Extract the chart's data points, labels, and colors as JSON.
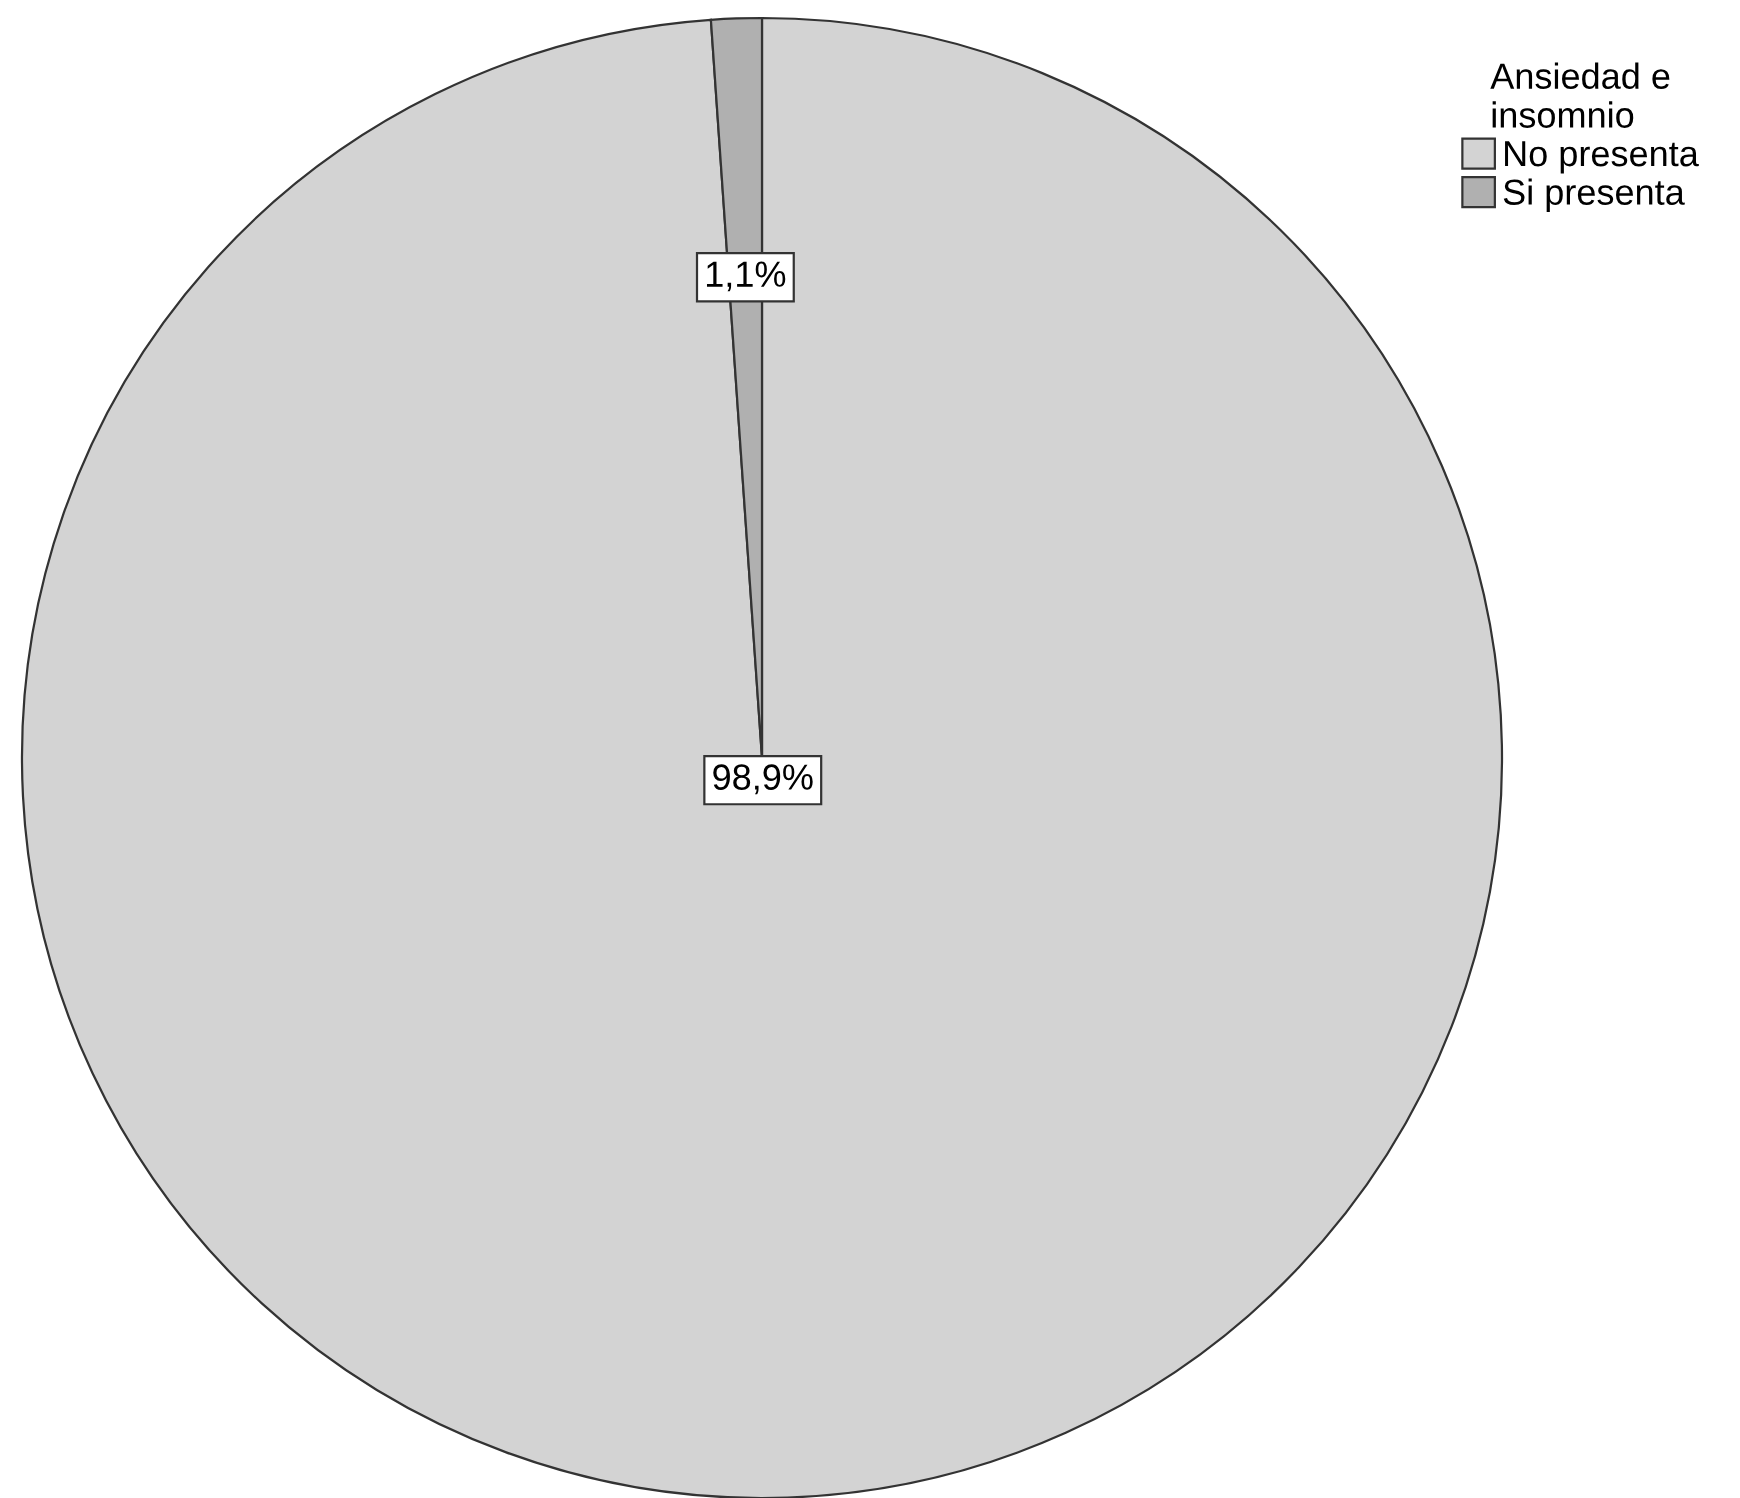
{
  "chart_data": {
    "type": "pie",
    "legend_title": "Ansiedad e\ninsomnio",
    "categories": [
      "No presenta",
      "Si presenta"
    ],
    "values": [
      98.9,
      1.1
    ],
    "colors": [
      "#d3d3d3",
      "#b0b0b0"
    ],
    "value_labels": [
      "98,9%",
      "1,1%"
    ],
    "legend": "top right"
  }
}
